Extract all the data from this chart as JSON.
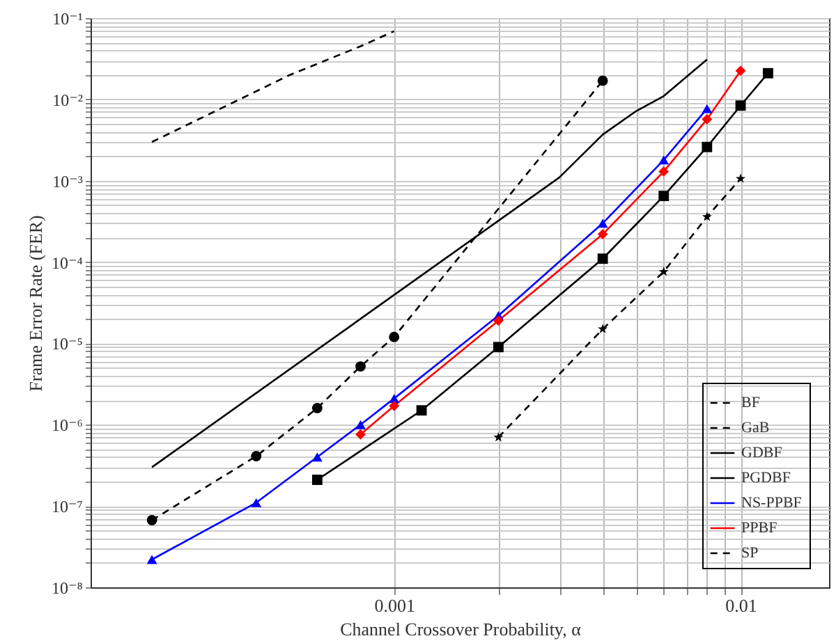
{
  "chart_data": {
    "type": "line",
    "xlabel": "Channel Crossover Probability, α",
    "ylabel": "Frame Error Rate (FER)",
    "log": "xy",
    "grid": true,
    "legend": "bottom right",
    "xlim": [
      0.000133,
      0.018
    ],
    "ylim": [
      1e-08,
      0.1
    ],
    "xticks": [
      0.001,
      {
        "value": 0.002,
        "label": null
      },
      {
        "value": 0.003,
        "label": null
      },
      {
        "value": 0.004,
        "label": null
      },
      {
        "value": 0.005,
        "label": null
      },
      {
        "value": 0.006,
        "label": null
      },
      {
        "value": 0.007,
        "label": null
      },
      {
        "value": 0.008,
        "label": null
      },
      {
        "value": 0.009,
        "label": null
      },
      0.01
    ],
    "yticks": [
      {
        "value": 1e-08,
        "label": "10⁻⁸"
      },
      {
        "value": 2e-08,
        "label": null
      },
      {
        "value": 3e-08,
        "label": null
      },
      {
        "value": 4e-08,
        "label": null
      },
      {
        "value": 5e-08,
        "label": null
      },
      {
        "value": 6e-08,
        "label": null
      },
      {
        "value": 7e-08,
        "label": null
      },
      {
        "value": 8e-08,
        "label": null
      },
      {
        "value": 9e-08,
        "label": null
      },
      {
        "value": 1e-07,
        "label": "10⁻⁷"
      },
      {
        "value": 2e-07,
        "label": null
      },
      {
        "value": 3e-07,
        "label": null
      },
      {
        "value": 4e-07,
        "label": null
      },
      {
        "value": 5e-07,
        "label": null
      },
      {
        "value": 6e-07,
        "label": null
      },
      {
        "value": 7e-07,
        "label": null
      },
      {
        "value": 8e-07,
        "label": null
      },
      {
        "value": 9e-07,
        "label": null
      },
      {
        "value": 1e-06,
        "label": "10⁻⁶"
      },
      {
        "value": 2e-06,
        "label": null
      },
      {
        "value": 3e-06,
        "label": null
      },
      {
        "value": 4e-06,
        "label": null
      },
      {
        "value": 5e-06,
        "label": null
      },
      {
        "value": 6e-06,
        "label": null
      },
      {
        "value": 7e-06,
        "label": null
      },
      {
        "value": 8e-06,
        "label": null
      },
      {
        "value": 9e-06,
        "label": null
      },
      {
        "value": 1e-05,
        "label": "10⁻⁵"
      },
      {
        "value": 2e-05,
        "label": null
      },
      {
        "value": 3e-05,
        "label": null
      },
      {
        "value": 4e-05,
        "label": null
      },
      {
        "value": 5e-05,
        "label": null
      },
      {
        "value": 6e-05,
        "label": null
      },
      {
        "value": 7e-05,
        "label": null
      },
      {
        "value": 8e-05,
        "label": null
      },
      {
        "value": 9e-05,
        "label": null
      },
      {
        "value": 0.0001,
        "label": "10⁻⁴"
      },
      {
        "value": 0.0002,
        "label": null
      },
      {
        "value": 0.0003,
        "label": null
      },
      {
        "value": 0.0004,
        "label": null
      },
      {
        "value": 0.0005,
        "label": null
      },
      {
        "value": 0.0006,
        "label": null
      },
      {
        "value": 0.0007,
        "label": null
      },
      {
        "value": 0.0008,
        "label": null
      },
      {
        "value": 0.0009,
        "label": null
      },
      {
        "value": 0.001,
        "label": "10⁻³"
      },
      {
        "value": 0.002,
        "label": null
      },
      {
        "value": 0.003,
        "label": null
      },
      {
        "value": 0.004,
        "label": null
      },
      {
        "value": 0.005,
        "label": null
      },
      {
        "value": 0.006,
        "label": null
      },
      {
        "value": 0.007,
        "label": null
      },
      {
        "value": 0.008,
        "label": null
      },
      {
        "value": 0.009,
        "label": null
      },
      {
        "value": 0.01,
        "label": "10⁻²"
      },
      {
        "value": 0.02,
        "label": null
      },
      {
        "value": 0.03,
        "label": null
      },
      {
        "value": 0.04,
        "label": null
      },
      {
        "value": 0.05,
        "label": null
      },
      {
        "value": 0.06,
        "label": null
      },
      {
        "value": 0.07,
        "label": null
      },
      {
        "value": 0.08,
        "label": null
      },
      {
        "value": 0.09,
        "label": null
      },
      {
        "value": 0.1,
        "label": "10⁻¹"
      }
    ],
    "series": [
      {
        "name": "BF",
        "color": "#000000",
        "line_style": "dashed",
        "marker": "none",
        "x": [
          0.0002,
          0.0005,
          0.0008,
          0.001
        ],
        "values": [
          0.003,
          0.02,
          0.045,
          0.069
        ]
      },
      {
        "name": "GaB",
        "color": "#000000",
        "line_style": "dashed",
        "marker": "circle",
        "x": [
          0.0002,
          0.0004,
          0.0006,
          0.0008,
          0.001,
          0.004
        ],
        "values": [
          6.7e-08,
          4.1e-07,
          1.6e-06,
          5.2e-06,
          1.2e-05,
          0.017
        ]
      },
      {
        "name": "GDBF",
        "color": "#000000",
        "line_style": "solid",
        "marker": "none",
        "x": [
          0.0002,
          0.003,
          0.004,
          0.005,
          0.006,
          0.008
        ],
        "values": [
          3e-07,
          0.0011,
          0.0037,
          0.0072,
          0.011,
          0.031
        ]
      },
      {
        "name": "PGDBF",
        "color": "#000000",
        "line_style": "solid",
        "marker": "square",
        "x": [
          0.0006,
          0.0012,
          0.002,
          0.004,
          0.006,
          0.008,
          0.01,
          0.012
        ],
        "values": [
          2.1e-07,
          1.5e-06,
          9e-06,
          0.00011,
          0.00065,
          0.0026,
          0.0084,
          0.021
        ]
      },
      {
        "name": "NS-PPBF",
        "color": "#0000ff",
        "line_style": "solid",
        "marker": "triangle",
        "x": [
          0.0002,
          0.0004,
          0.0006,
          0.0008,
          0.001,
          0.002,
          0.004,
          0.006,
          0.008
        ],
        "values": [
          2.2e-08,
          1.1e-07,
          4e-07,
          1e-06,
          2.1e-06,
          2.2e-05,
          0.0003,
          0.0018,
          0.0077
        ]
      },
      {
        "name": "PPBF",
        "color": "#ff0000",
        "line_style": "solid",
        "marker": "diamond",
        "x": [
          0.0008,
          0.001,
          0.002,
          0.004,
          0.006,
          0.008,
          0.01
        ],
        "values": [
          7.6e-07,
          1.7e-06,
          1.9e-05,
          0.00022,
          0.0013,
          0.0057,
          0.0225
        ]
      },
      {
        "name": "SP",
        "color": "#000000",
        "line_style": "dashed",
        "marker": "star",
        "x": [
          0.002,
          0.004,
          0.006,
          0.008,
          0.01
        ],
        "values": [
          7e-07,
          1.5e-05,
          7.6e-05,
          0.00036,
          0.00106
        ]
      }
    ]
  }
}
